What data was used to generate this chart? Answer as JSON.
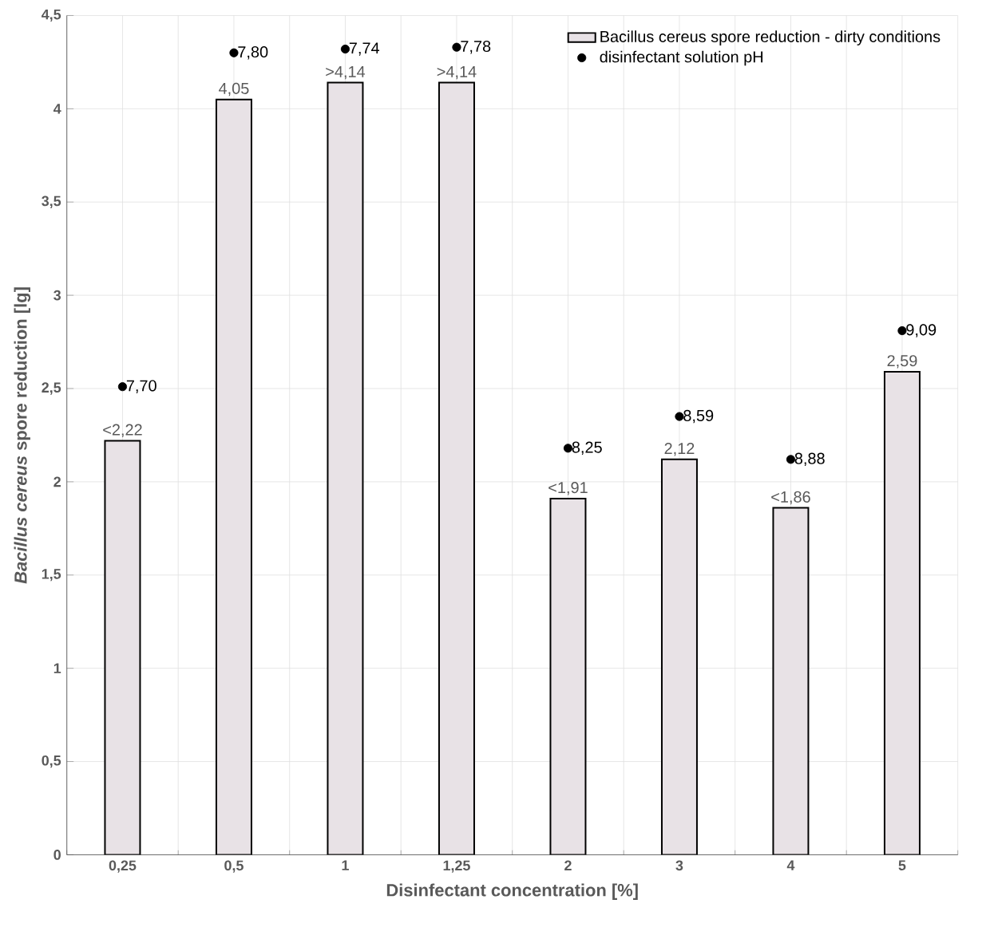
{
  "chart_data": {
    "type": "bar",
    "xlabel": "Disinfectant concentration [%]",
    "ylabel": "*Bacillus cereus* spore reduction [lg]",
    "categories": [
      "0,25",
      "0,5",
      "1",
      "1,25",
      "2",
      "3",
      "4",
      "5"
    ],
    "series": [
      {
        "name": "Bacillus cereus spore reduction - dirty conditions",
        "color": "#e8e2e6",
        "values": [
          2.22,
          4.05,
          4.14,
          4.14,
          1.91,
          2.12,
          1.86,
          2.59
        ],
        "value_labels": [
          "<2,22",
          "4,05",
          ">4,14",
          ">4,14",
          "<1,91",
          "2,12",
          "<1,86",
          "2,59"
        ]
      },
      {
        "name": "disinfectant solution pH",
        "type": "scatter",
        "color": "#000000",
        "values": [
          2.51,
          4.3,
          4.32,
          4.33,
          2.18,
          2.35,
          2.12,
          2.81
        ]
      }
    ],
    "annotations": [
      {
        "text": "7,70",
        "x": "0,25",
        "y": 2.51
      },
      {
        "text": "7,80",
        "x": "0,5",
        "y": 4.3
      },
      {
        "text": "7,74",
        "x": "1",
        "y": 4.32
      },
      {
        "text": "7,78",
        "x": "1,25",
        "y": 4.33
      },
      {
        "text": "8,25",
        "x": "2",
        "y": 2.18
      },
      {
        "text": "8,59",
        "x": "3",
        "y": 2.35
      },
      {
        "text": "8,88",
        "x": "4",
        "y": 2.12
      },
      {
        "text": "9,09",
        "x": "5",
        "y": 2.81
      }
    ],
    "ylim": [
      0,
      4.5
    ],
    "yticks": [
      0,
      {
        "value": 0.5,
        "label": "0,5"
      },
      1,
      {
        "value": 1.5,
        "label": "1,5"
      },
      2,
      {
        "value": 2.5,
        "label": "2,5"
      },
      3,
      {
        "value": 3.5,
        "label": "3,5"
      },
      4,
      {
        "value": 4.5,
        "label": "4,5"
      }
    ],
    "grid": true,
    "legend": "top right"
  }
}
